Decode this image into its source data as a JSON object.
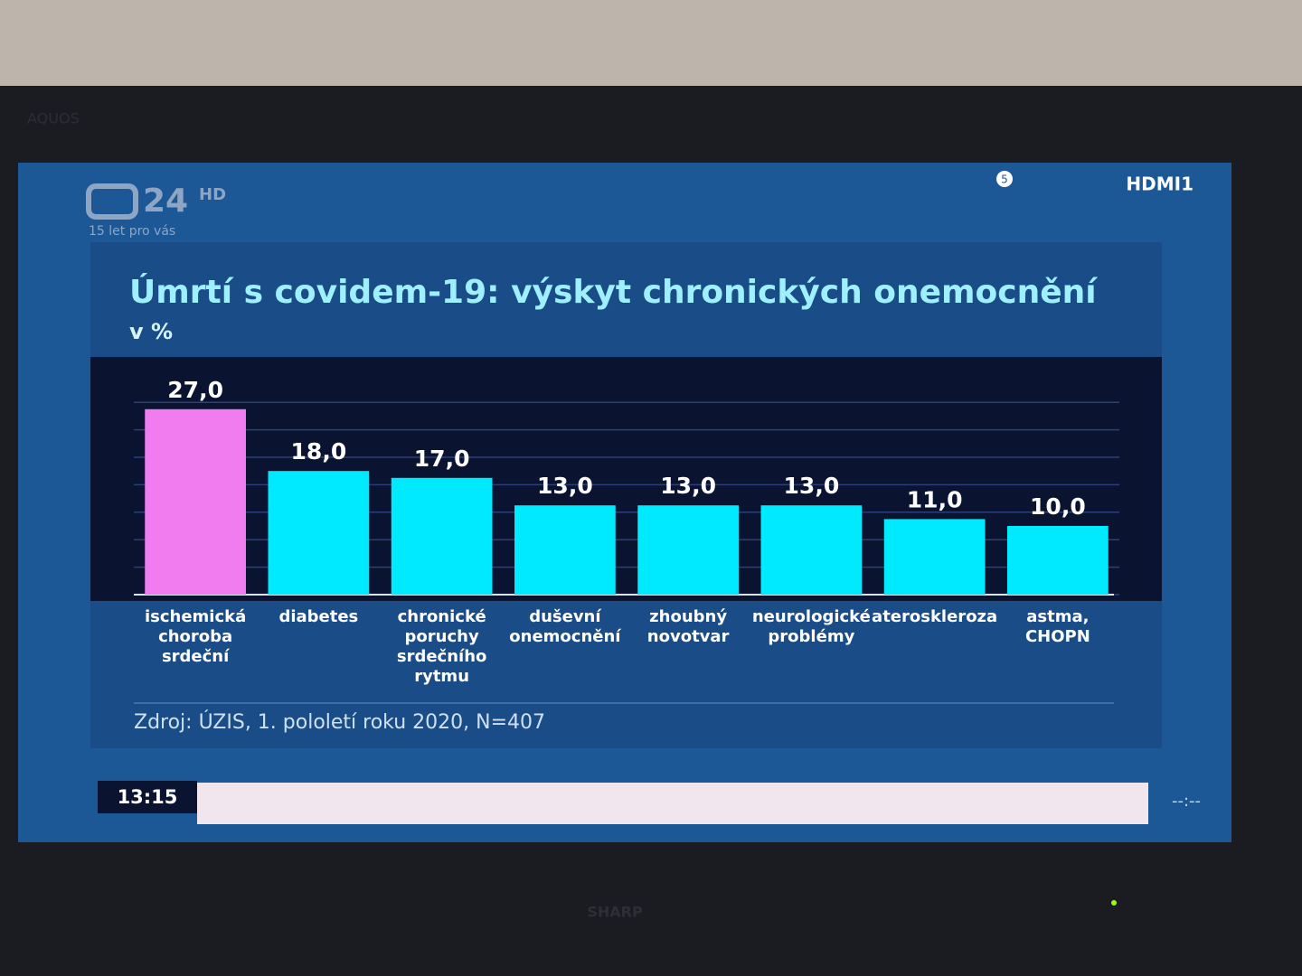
{
  "chart_data": {
    "type": "bar",
    "title": "Úmrtí s covidem-19: výskyt chronických onemocnění",
    "subtitle": "v %",
    "source": "Zdroj: ÚZIS, 1. pololetí roku 2020, N=407",
    "categories": [
      "ischemická choroba srdeční",
      "diabetes",
      "chronické poruchy srdečního rytmu",
      "duševní onemocnění",
      "zhoubný novotvar",
      "neurologické problémy",
      "ateroskleroza",
      "astma, CHOPN"
    ],
    "values": [
      27,
      18,
      17,
      13,
      13,
      13,
      11,
      10
    ],
    "value_labels": [
      "27,0",
      "18,0",
      "17,0",
      "13,0",
      "13,0",
      "13,0",
      "11,0",
      "10,0"
    ],
    "colors": [
      "#f07cf0",
      "#00eaff",
      "#00eaff",
      "#00eaff",
      "#00eaff",
      "#00eaff",
      "#00eaff",
      "#00eaff"
    ],
    "ylim": [
      0,
      30
    ],
    "yticks": [
      0,
      4,
      8,
      12,
      16,
      20,
      24,
      28
    ],
    "grid": true
  },
  "screen": {
    "channel": "24",
    "channel_tag": "HD",
    "slogan": "15 let pro vás",
    "input": "HDMI1",
    "badge": "5",
    "clock": "13:15",
    "next": "--:--",
    "brand": "SHARP",
    "series": "AQUOS"
  }
}
